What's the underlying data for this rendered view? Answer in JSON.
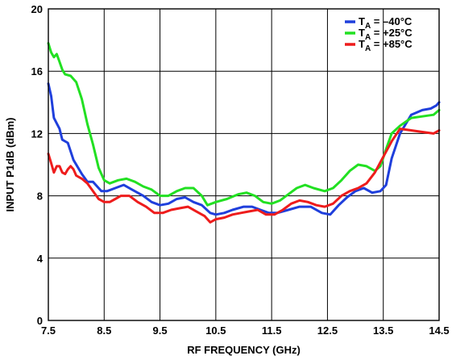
{
  "chart_data": {
    "type": "line",
    "xlabel": "RF FREQUENCY (GHz)",
    "ylabel": "INPUT P1dB (dBm)",
    "xlim": [
      7.5,
      14.5
    ],
    "ylim": [
      0,
      20
    ],
    "xticks": [
      "7.5",
      "8.5",
      "9.5",
      "10.5",
      "11.5",
      "12.5",
      "13.5",
      "14.5"
    ],
    "yticks": [
      "0",
      "4",
      "8",
      "12",
      "16",
      "20"
    ],
    "grid": true,
    "legend_position": "top-right",
    "series": [
      {
        "name": "T_A = –40°C",
        "legend": {
          "prefix": "T",
          "sub": "A",
          "suffix": " = –40°C"
        },
        "color": "#1f3fdc",
        "x": [
          7.5,
          7.55,
          7.6,
          7.7,
          7.75,
          7.85,
          7.95,
          8.1,
          8.2,
          8.3,
          8.45,
          8.55,
          8.7,
          8.85,
          9.0,
          9.2,
          9.35,
          9.5,
          9.65,
          9.8,
          9.95,
          10.1,
          10.25,
          10.4,
          10.5,
          10.65,
          10.8,
          11.0,
          11.15,
          11.3,
          11.45,
          11.6,
          11.8,
          12.0,
          12.2,
          12.4,
          12.55,
          12.7,
          12.85,
          13.0,
          13.15,
          13.3,
          13.45,
          13.55,
          13.65,
          13.8,
          14.0,
          14.2,
          14.35,
          14.45,
          14.5
        ],
        "values": [
          15.2,
          14.4,
          13.0,
          12.3,
          11.6,
          11.4,
          10.3,
          9.4,
          8.9,
          8.9,
          8.3,
          8.3,
          8.5,
          8.7,
          8.4,
          8.0,
          7.6,
          7.4,
          7.5,
          7.8,
          7.9,
          7.6,
          7.4,
          6.9,
          6.8,
          6.9,
          7.1,
          7.3,
          7.3,
          7.1,
          6.9,
          6.9,
          7.1,
          7.3,
          7.3,
          6.9,
          6.8,
          7.4,
          7.9,
          8.3,
          8.5,
          8.2,
          8.3,
          8.7,
          10.4,
          12.0,
          13.2,
          13.5,
          13.6,
          13.8,
          14.0
        ]
      },
      {
        "name": "T_A = +25°C",
        "legend": {
          "prefix": "T",
          "sub": "A",
          "suffix": " = +25°C"
        },
        "color": "#22e022",
        "x": [
          7.5,
          7.55,
          7.6,
          7.65,
          7.7,
          7.75,
          7.8,
          7.9,
          8.0,
          8.1,
          8.2,
          8.3,
          8.4,
          8.5,
          8.6,
          8.75,
          8.9,
          9.05,
          9.2,
          9.35,
          9.5,
          9.65,
          9.8,
          9.95,
          10.1,
          10.25,
          10.35,
          10.5,
          10.7,
          10.9,
          11.05,
          11.2,
          11.35,
          11.5,
          11.65,
          11.8,
          11.95,
          12.1,
          12.25,
          12.45,
          12.6,
          12.75,
          12.9,
          13.05,
          13.2,
          13.35,
          13.45,
          13.55,
          13.65,
          13.8,
          14.0,
          14.2,
          14.4,
          14.5
        ],
        "values": [
          17.8,
          17.2,
          16.9,
          17.1,
          16.6,
          16.1,
          15.8,
          15.7,
          15.3,
          14.2,
          12.6,
          11.3,
          9.8,
          9.0,
          8.8,
          9.0,
          9.1,
          8.9,
          8.6,
          8.4,
          8.0,
          8.0,
          8.3,
          8.5,
          8.5,
          8.0,
          7.4,
          7.6,
          7.8,
          8.1,
          8.2,
          8.0,
          7.6,
          7.5,
          7.7,
          8.1,
          8.5,
          8.7,
          8.5,
          8.3,
          8.5,
          9.0,
          9.6,
          10.0,
          9.9,
          9.6,
          9.9,
          11.0,
          12.0,
          12.5,
          13.0,
          13.1,
          13.2,
          13.5
        ]
      },
      {
        "name": "T_A = +85°C",
        "legend": {
          "prefix": "T",
          "sub": "A",
          "suffix": " = +85°C"
        },
        "color": "#ee1c1c",
        "x": [
          7.5,
          7.55,
          7.6,
          7.65,
          7.7,
          7.75,
          7.8,
          7.85,
          7.9,
          7.95,
          8.0,
          8.1,
          8.2,
          8.3,
          8.4,
          8.5,
          8.6,
          8.7,
          8.8,
          8.95,
          9.1,
          9.25,
          9.4,
          9.55,
          9.7,
          9.85,
          10.0,
          10.15,
          10.3,
          10.4,
          10.5,
          10.65,
          10.8,
          10.95,
          11.1,
          11.25,
          11.4,
          11.55,
          11.7,
          11.85,
          12.0,
          12.15,
          12.3,
          12.45,
          12.6,
          12.75,
          12.9,
          13.05,
          13.2,
          13.35,
          13.5,
          13.65,
          13.8,
          14.0,
          14.2,
          14.4,
          14.5
        ],
        "values": [
          10.7,
          10.1,
          9.5,
          9.9,
          9.9,
          9.5,
          9.4,
          9.7,
          9.9,
          9.7,
          9.3,
          9.1,
          8.8,
          8.3,
          7.8,
          7.6,
          7.6,
          7.8,
          8.0,
          8.0,
          7.6,
          7.3,
          6.9,
          6.9,
          7.1,
          7.2,
          7.3,
          7.0,
          6.7,
          6.3,
          6.5,
          6.6,
          6.8,
          6.9,
          7.0,
          7.1,
          6.8,
          6.8,
          7.1,
          7.5,
          7.7,
          7.6,
          7.4,
          7.3,
          7.5,
          8.0,
          8.3,
          8.5,
          8.8,
          9.5,
          10.5,
          11.5,
          12.3,
          12.2,
          12.1,
          12.0,
          12.2
        ]
      }
    ]
  }
}
